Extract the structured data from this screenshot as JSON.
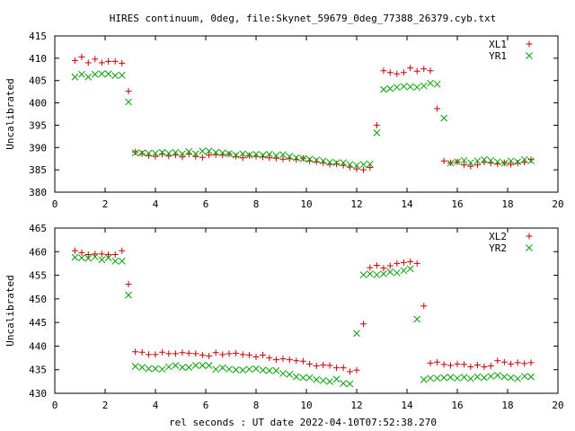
{
  "title": "HIRES continuum, 0deg, file:Skynet_59679_0deg_77388_26379.cyb.txt",
  "xlabel": "rel seconds : UT date 2022-04-10T07:52:38.270",
  "chart_data": [
    {
      "type": "scatter",
      "ylabel": "Uncalibrated",
      "xlim": [
        0,
        20
      ],
      "ylim": [
        380,
        415
      ],
      "x_ticks": [
        0,
        2,
        4,
        6,
        8,
        10,
        12,
        14,
        16,
        18,
        20
      ],
      "y_ticks": [
        380,
        385,
        390,
        395,
        400,
        405,
        410,
        415
      ],
      "legend_position": "top-right",
      "x": [
        0.8,
        1.07,
        1.33,
        1.6,
        1.87,
        2.13,
        2.4,
        2.67,
        2.93,
        3.2,
        3.47,
        3.73,
        4.0,
        4.27,
        4.53,
        4.8,
        5.07,
        5.33,
        5.6,
        5.87,
        6.13,
        6.4,
        6.67,
        6.93,
        7.2,
        7.47,
        7.73,
        8.0,
        8.27,
        8.53,
        8.8,
        9.07,
        9.33,
        9.6,
        9.87,
        10.13,
        10.4,
        10.67,
        10.93,
        11.2,
        11.47,
        11.73,
        12.0,
        12.27,
        12.53,
        12.8,
        13.07,
        13.33,
        13.6,
        13.87,
        14.13,
        14.4,
        14.67,
        14.93,
        15.2,
        15.47,
        15.73,
        16.0,
        16.27,
        16.53,
        16.8,
        17.07,
        17.33,
        17.6,
        17.87,
        18.13,
        18.4,
        18.67,
        18.93
      ],
      "series": [
        {
          "name": "XL1",
          "color": "#cc0000",
          "marker": "plus",
          "values": [
            409.5,
            410.3,
            409.0,
            409.8,
            409.0,
            409.3,
            409.3,
            408.9,
            402.6,
            389.0,
            388.6,
            388.2,
            388.0,
            388.5,
            388.1,
            388.3,
            387.9,
            388.5,
            388.0,
            387.8,
            388.3,
            388.4,
            388.3,
            388.5,
            388.0,
            387.7,
            388.2,
            388.0,
            387.9,
            387.7,
            387.6,
            387.4,
            387.5,
            387.3,
            387.6,
            387.0,
            386.8,
            386.6,
            386.2,
            386.3,
            386.0,
            385.6,
            385.2,
            385.0,
            385.5,
            395.0,
            407.2,
            406.8,
            406.5,
            406.8,
            407.8,
            407.1,
            407.6,
            407.2,
            398.7,
            387.0,
            386.6,
            386.8,
            386.1,
            385.8,
            386.1,
            386.7,
            386.5,
            386.3,
            386.6,
            386.2,
            386.5,
            386.7,
            387.3
          ]
        },
        {
          "name": "YR1",
          "color": "#00a000",
          "marker": "cross",
          "values": [
            405.8,
            406.4,
            405.8,
            406.4,
            406.5,
            406.5,
            406.1,
            406.2,
            400.2,
            388.8,
            388.8,
            388.7,
            388.7,
            388.9,
            388.7,
            388.9,
            388.6,
            389.1,
            388.6,
            389.2,
            389.2,
            388.9,
            388.8,
            388.6,
            388.3,
            388.6,
            388.3,
            388.5,
            388.3,
            388.5,
            388.2,
            388.4,
            388.0,
            387.7,
            387.5,
            387.4,
            387.2,
            387.0,
            386.7,
            386.6,
            386.6,
            386.2,
            386.0,
            386.2,
            386.3,
            393.3,
            403.0,
            403.2,
            403.5,
            403.7,
            403.6,
            403.5,
            403.8,
            404.4,
            404.2,
            396.6,
            386.5,
            386.8,
            387.1,
            386.6,
            387.0,
            387.3,
            387.1,
            386.8,
            386.5,
            387.0,
            386.8,
            387.3,
            387.0
          ]
        }
      ]
    },
    {
      "type": "scatter",
      "ylabel": "Uncalibrated",
      "xlim": [
        0,
        20
      ],
      "ylim": [
        430,
        465
      ],
      "x_ticks": [
        0,
        2,
        4,
        6,
        8,
        10,
        12,
        14,
        16,
        18,
        20
      ],
      "y_ticks": [
        430,
        435,
        440,
        445,
        450,
        455,
        460,
        465
      ],
      "legend_position": "top-right",
      "x": [
        0.8,
        1.07,
        1.33,
        1.6,
        1.87,
        2.13,
        2.4,
        2.67,
        2.93,
        3.2,
        3.47,
        3.73,
        4.0,
        4.27,
        4.53,
        4.8,
        5.07,
        5.33,
        5.6,
        5.87,
        6.13,
        6.4,
        6.67,
        6.93,
        7.2,
        7.47,
        7.73,
        8.0,
        8.27,
        8.53,
        8.8,
        9.07,
        9.33,
        9.6,
        9.87,
        10.13,
        10.4,
        10.67,
        10.93,
        11.2,
        11.47,
        11.73,
        12.0,
        12.27,
        12.53,
        12.8,
        13.07,
        13.33,
        13.6,
        13.87,
        14.13,
        14.4,
        14.67,
        14.93,
        15.2,
        15.47,
        15.73,
        16.0,
        16.27,
        16.53,
        16.8,
        17.07,
        17.33,
        17.6,
        17.87,
        18.13,
        18.4,
        18.67,
        18.93
      ],
      "series": [
        {
          "name": "XL2",
          "color": "#cc0000",
          "marker": "plus",
          "values": [
            460.2,
            459.8,
            459.4,
            459.5,
            459.5,
            459.4,
            459.4,
            460.2,
            453.1,
            438.8,
            438.7,
            438.2,
            438.2,
            438.7,
            438.4,
            438.4,
            438.6,
            438.5,
            438.4,
            438.1,
            437.9,
            438.6,
            438.2,
            438.4,
            438.5,
            438.2,
            438.1,
            437.7,
            438.1,
            437.5,
            437.1,
            437.3,
            437.1,
            436.9,
            436.8,
            436.2,
            435.8,
            436.0,
            435.9,
            435.4,
            435.4,
            434.6,
            434.9,
            444.7,
            456.6,
            457.1,
            456.5,
            457.0,
            457.5,
            457.7,
            457.9,
            457.5,
            448.5,
            436.4,
            436.6,
            436.1,
            435.9,
            436.2,
            436.1,
            435.6,
            436.0,
            435.6,
            435.8,
            436.9,
            436.6,
            436.2,
            436.5,
            436.3,
            436.5
          ]
        },
        {
          "name": "YR2",
          "color": "#00a000",
          "marker": "cross",
          "values": [
            458.8,
            458.7,
            458.6,
            458.9,
            458.3,
            458.7,
            458.0,
            458.0,
            450.8,
            435.7,
            435.5,
            435.2,
            435.2,
            435.1,
            435.6,
            435.9,
            435.5,
            435.5,
            435.9,
            435.9,
            435.9,
            435.1,
            435.4,
            435.1,
            435.0,
            434.9,
            435.1,
            435.2,
            434.9,
            434.8,
            434.8,
            434.2,
            434.0,
            433.5,
            433.3,
            433.3,
            432.9,
            432.7,
            432.5,
            433.0,
            432.1,
            432.0,
            442.7,
            455.1,
            455.3,
            455.1,
            455.3,
            455.7,
            455.5,
            456.0,
            456.4,
            445.7,
            432.9,
            433.2,
            433.2,
            433.3,
            433.4,
            433.2,
            433.4,
            433.1,
            433.5,
            433.3,
            433.6,
            433.8,
            433.5,
            433.3,
            433.1,
            433.6,
            433.5
          ]
        }
      ]
    }
  ]
}
